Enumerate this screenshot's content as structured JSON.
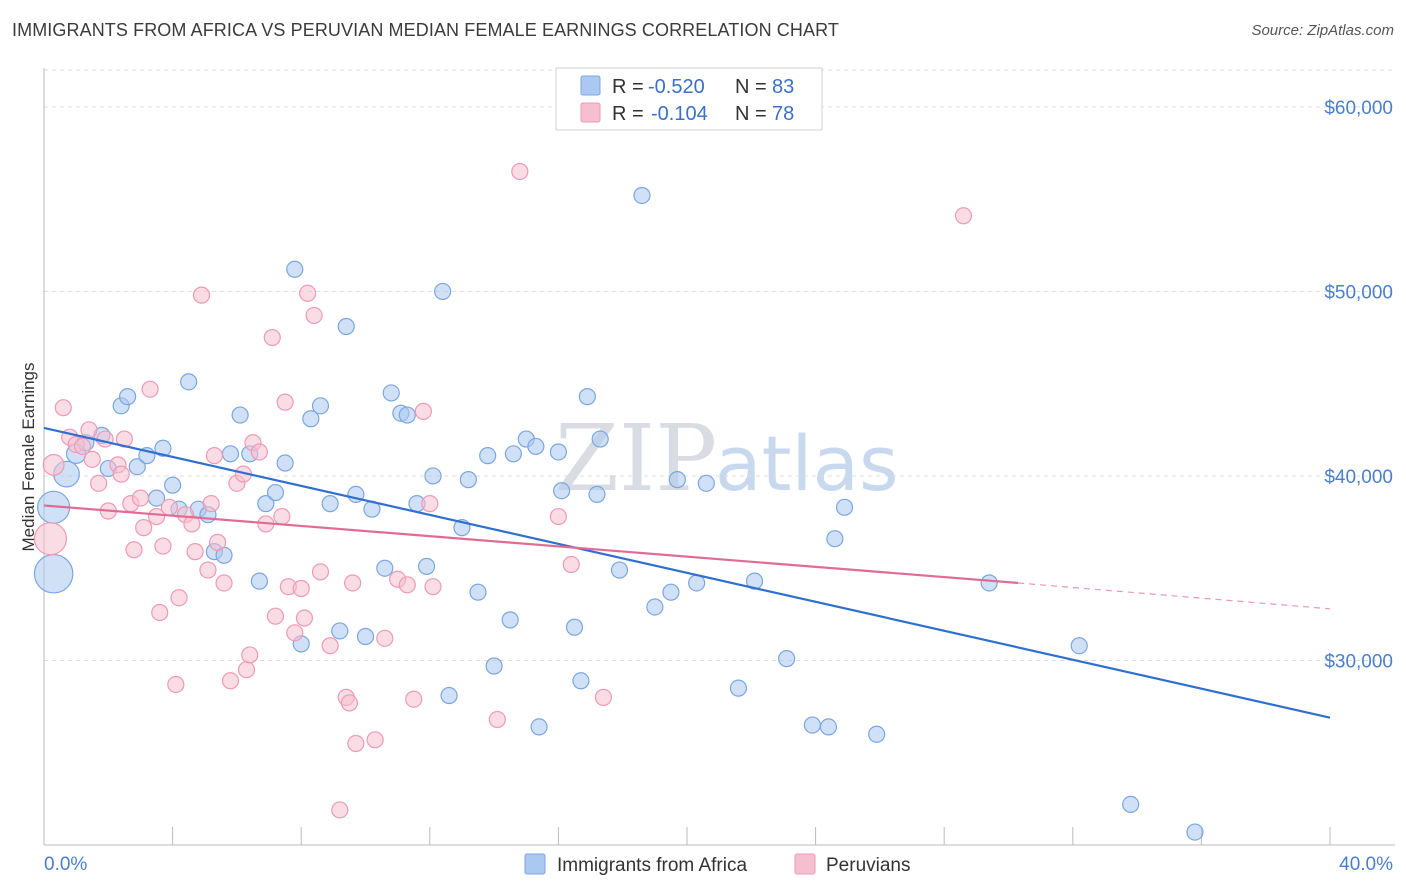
{
  "title": "IMMIGRANTS FROM AFRICA VS PERUVIAN MEDIAN FEMALE EARNINGS CORRELATION CHART",
  "source": "Source: ZipAtlas.com",
  "watermark": {
    "zip": "ZIP",
    "atlas": "atlas"
  },
  "legend": {
    "rows": [
      {
        "r_label": "R =",
        "r_value": "-0.520",
        "n_label": "N =",
        "n_value": "83"
      },
      {
        "r_label": "R =",
        "r_value": "-0.104",
        "n_label": "N =",
        "n_value": "78"
      }
    ]
  },
  "bottom_legend": [
    "Immigrants from Africa",
    "Peruvians"
  ],
  "colors": {
    "africa_fill": "#aac8f0",
    "africa_stroke": "#7aa6e0",
    "africa_line": "#2f6fd1",
    "peru_fill": "#f6bfd0",
    "peru_stroke": "#ee9ab5",
    "peru_line": "#e06b95",
    "grid": "#dddddd",
    "tick_label": "#4a7fcf"
  },
  "chart_data": {
    "type": "scatter",
    "title": "IMMIGRANTS FROM AFRICA VS PERUVIAN MEDIAN FEMALE EARNINGS CORRELATION CHART",
    "xlabel": "",
    "ylabel": "Median Female Earnings",
    "xlim": [
      0,
      40
    ],
    "ylim": [
      20000,
      62000
    ],
    "x_tick_labels": [
      "0.0%",
      "40.0%"
    ],
    "y_ticks": [
      30000,
      40000,
      50000,
      60000
    ],
    "y_tick_labels": [
      "$30,000",
      "$40,000",
      "$50,000",
      "$60,000"
    ],
    "grid": true,
    "legend_position": "top-center",
    "series": [
      {
        "name": "Immigrants from Africa",
        "r": -0.52,
        "n": 83,
        "trend": {
          "x": [
            0,
            40
          ],
          "y": [
            42600,
            26900
          ]
        },
        "points": [
          {
            "x": 0.3,
            "y": 38300,
            "s": 2
          },
          {
            "x": 0.3,
            "y": 34700,
            "s": 2.4
          },
          {
            "x": 0.7,
            "y": 40100,
            "s": 1.6
          },
          {
            "x": 1.0,
            "y": 41200,
            "s": 1.2
          },
          {
            "x": 1.3,
            "y": 41800
          },
          {
            "x": 1.8,
            "y": 42200
          },
          {
            "x": 2.0,
            "y": 40400
          },
          {
            "x": 2.4,
            "y": 43800
          },
          {
            "x": 2.6,
            "y": 44300
          },
          {
            "x": 2.9,
            "y": 40500
          },
          {
            "x": 3.2,
            "y": 41100
          },
          {
            "x": 3.5,
            "y": 38800
          },
          {
            "x": 3.7,
            "y": 41500
          },
          {
            "x": 4.0,
            "y": 39500
          },
          {
            "x": 4.2,
            "y": 38200
          },
          {
            "x": 4.5,
            "y": 45100
          },
          {
            "x": 4.8,
            "y": 38200
          },
          {
            "x": 5.1,
            "y": 37900
          },
          {
            "x": 5.3,
            "y": 35900
          },
          {
            "x": 5.6,
            "y": 35700
          },
          {
            "x": 5.8,
            "y": 41200
          },
          {
            "x": 6.1,
            "y": 43300
          },
          {
            "x": 6.4,
            "y": 41200
          },
          {
            "x": 6.7,
            "y": 34300
          },
          {
            "x": 6.9,
            "y": 38500
          },
          {
            "x": 7.2,
            "y": 39100
          },
          {
            "x": 7.5,
            "y": 40700
          },
          {
            "x": 7.8,
            "y": 51200
          },
          {
            "x": 8.0,
            "y": 30900
          },
          {
            "x": 8.3,
            "y": 43100
          },
          {
            "x": 8.6,
            "y": 43800
          },
          {
            "x": 8.9,
            "y": 38500
          },
          {
            "x": 9.2,
            "y": 31600
          },
          {
            "x": 9.4,
            "y": 48100
          },
          {
            "x": 9.7,
            "y": 39000
          },
          {
            "x": 10.0,
            "y": 31300
          },
          {
            "x": 10.2,
            "y": 38200
          },
          {
            "x": 10.6,
            "y": 35000
          },
          {
            "x": 10.8,
            "y": 44500
          },
          {
            "x": 11.1,
            "y": 43400
          },
          {
            "x": 11.3,
            "y": 43300
          },
          {
            "x": 11.6,
            "y": 38500
          },
          {
            "x": 11.9,
            "y": 35100
          },
          {
            "x": 12.1,
            "y": 40000
          },
          {
            "x": 12.4,
            "y": 50000
          },
          {
            "x": 12.6,
            "y": 28100
          },
          {
            "x": 13.0,
            "y": 37200
          },
          {
            "x": 13.2,
            "y": 39800
          },
          {
            "x": 13.5,
            "y": 33700
          },
          {
            "x": 13.8,
            "y": 41100
          },
          {
            "x": 14.0,
            "y": 29700
          },
          {
            "x": 14.5,
            "y": 32200
          },
          {
            "x": 14.6,
            "y": 41200
          },
          {
            "x": 15.0,
            "y": 42000
          },
          {
            "x": 15.3,
            "y": 41600
          },
          {
            "x": 15.4,
            "y": 26400
          },
          {
            "x": 16.0,
            "y": 41300
          },
          {
            "x": 16.1,
            "y": 39200
          },
          {
            "x": 16.5,
            "y": 31800
          },
          {
            "x": 16.7,
            "y": 28900
          },
          {
            "x": 16.9,
            "y": 44300
          },
          {
            "x": 17.2,
            "y": 39000
          },
          {
            "x": 17.3,
            "y": 42000
          },
          {
            "x": 17.9,
            "y": 34900
          },
          {
            "x": 18.6,
            "y": 55200
          },
          {
            "x": 19.0,
            "y": 32900
          },
          {
            "x": 19.5,
            "y": 33700
          },
          {
            "x": 19.7,
            "y": 39800
          },
          {
            "x": 20.3,
            "y": 34200
          },
          {
            "x": 20.6,
            "y": 39600
          },
          {
            "x": 21.6,
            "y": 28500
          },
          {
            "x": 22.1,
            "y": 34300
          },
          {
            "x": 23.1,
            "y": 30100
          },
          {
            "x": 23.9,
            "y": 26500
          },
          {
            "x": 24.4,
            "y": 26400
          },
          {
            "x": 24.6,
            "y": 36600
          },
          {
            "x": 24.9,
            "y": 38300
          },
          {
            "x": 25.9,
            "y": 26000
          },
          {
            "x": 29.4,
            "y": 34200
          },
          {
            "x": 32.2,
            "y": 30800
          },
          {
            "x": 33.8,
            "y": 22200
          },
          {
            "x": 35.8,
            "y": 20700
          }
        ]
      },
      {
        "name": "Peruvians",
        "r": -0.104,
        "n": 78,
        "trend": {
          "x": [
            0,
            30.3
          ],
          "y": [
            38400,
            34200
          ]
        },
        "trend_dashed": {
          "x": [
            30.3,
            40
          ],
          "y": [
            34200,
            32800
          ]
        },
        "points": [
          {
            "x": 0.2,
            "y": 36600,
            "s": 2
          },
          {
            "x": 0.3,
            "y": 40600,
            "s": 1.3
          },
          {
            "x": 0.6,
            "y": 43700
          },
          {
            "x": 0.8,
            "y": 42100
          },
          {
            "x": 1.0,
            "y": 41700
          },
          {
            "x": 1.2,
            "y": 41600
          },
          {
            "x": 1.4,
            "y": 42500
          },
          {
            "x": 1.5,
            "y": 40900
          },
          {
            "x": 1.7,
            "y": 39600
          },
          {
            "x": 1.9,
            "y": 42000
          },
          {
            "x": 2.0,
            "y": 38100
          },
          {
            "x": 2.3,
            "y": 40600
          },
          {
            "x": 2.4,
            "y": 40100
          },
          {
            "x": 2.5,
            "y": 42000
          },
          {
            "x": 2.7,
            "y": 38500
          },
          {
            "x": 2.8,
            "y": 36000
          },
          {
            "x": 3.0,
            "y": 38800
          },
          {
            "x": 3.1,
            "y": 37200
          },
          {
            "x": 3.3,
            "y": 44700
          },
          {
            "x": 3.5,
            "y": 37800
          },
          {
            "x": 3.6,
            "y": 32600
          },
          {
            "x": 3.7,
            "y": 36200
          },
          {
            "x": 3.9,
            "y": 38300
          },
          {
            "x": 4.1,
            "y": 28700
          },
          {
            "x": 4.2,
            "y": 33400
          },
          {
            "x": 4.4,
            "y": 37900
          },
          {
            "x": 4.6,
            "y": 37400
          },
          {
            "x": 4.7,
            "y": 35900
          },
          {
            "x": 4.9,
            "y": 49800
          },
          {
            "x": 5.1,
            "y": 34900
          },
          {
            "x": 5.2,
            "y": 38500
          },
          {
            "x": 5.3,
            "y": 41100
          },
          {
            "x": 5.4,
            "y": 36400
          },
          {
            "x": 5.6,
            "y": 34200
          },
          {
            "x": 5.8,
            "y": 28900
          },
          {
            "x": 6.0,
            "y": 39600
          },
          {
            "x": 6.2,
            "y": 40100
          },
          {
            "x": 6.3,
            "y": 29500
          },
          {
            "x": 6.4,
            "y": 30300
          },
          {
            "x": 6.5,
            "y": 41800
          },
          {
            "x": 6.7,
            "y": 41300
          },
          {
            "x": 6.9,
            "y": 37400
          },
          {
            "x": 7.1,
            "y": 47500
          },
          {
            "x": 7.2,
            "y": 32400
          },
          {
            "x": 7.4,
            "y": 37800
          },
          {
            "x": 7.5,
            "y": 44000
          },
          {
            "x": 7.6,
            "y": 34000
          },
          {
            "x": 7.8,
            "y": 31500
          },
          {
            "x": 8.0,
            "y": 33900
          },
          {
            "x": 8.1,
            "y": 32300
          },
          {
            "x": 8.2,
            "y": 49900
          },
          {
            "x": 8.4,
            "y": 48700
          },
          {
            "x": 8.6,
            "y": 34800
          },
          {
            "x": 8.9,
            "y": 30800
          },
          {
            "x": 9.2,
            "y": 21900
          },
          {
            "x": 9.4,
            "y": 28000
          },
          {
            "x": 9.5,
            "y": 27700
          },
          {
            "x": 9.6,
            "y": 34200
          },
          {
            "x": 9.7,
            "y": 25500
          },
          {
            "x": 10.3,
            "y": 25700
          },
          {
            "x": 10.6,
            "y": 31200
          },
          {
            "x": 11.0,
            "y": 34400
          },
          {
            "x": 11.3,
            "y": 34100
          },
          {
            "x": 11.5,
            "y": 27900
          },
          {
            "x": 11.8,
            "y": 43500
          },
          {
            "x": 12.0,
            "y": 38500
          },
          {
            "x": 12.1,
            "y": 34000
          },
          {
            "x": 14.1,
            "y": 26800
          },
          {
            "x": 14.8,
            "y": 56500
          },
          {
            "x": 16.0,
            "y": 37800
          },
          {
            "x": 16.4,
            "y": 35200
          },
          {
            "x": 17.4,
            "y": 28000
          },
          {
            "x": 28.6,
            "y": 54100
          }
        ]
      }
    ]
  }
}
